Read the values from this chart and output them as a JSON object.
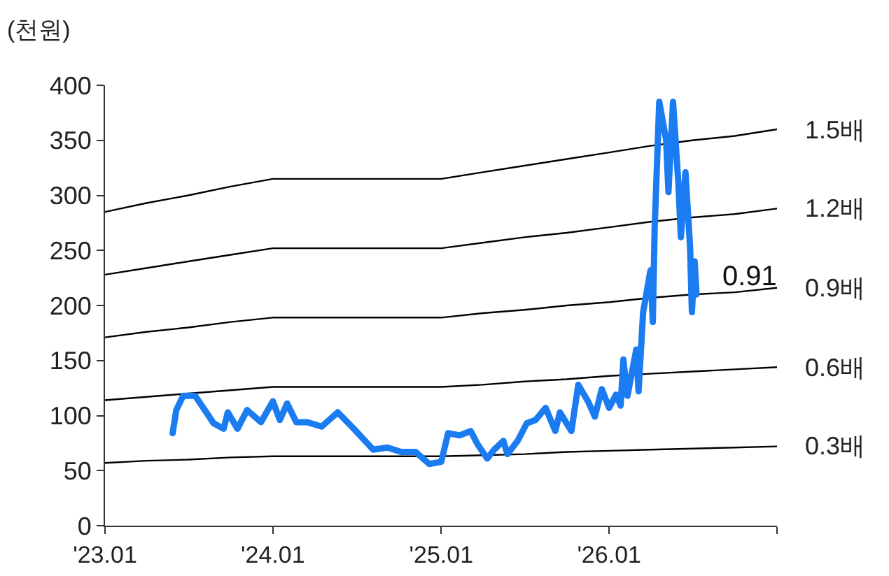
{
  "chart_data": {
    "type": "line",
    "ylabel": "(천원)",
    "xlim": [
      "2023-01-01",
      "2027-01-01"
    ],
    "xticks": [
      {
        "value": "2023-01-01",
        "label": "'23.01"
      },
      {
        "value": "2024-01-01",
        "label": "'24.01"
      },
      {
        "value": "2025-01-01",
        "label": "'25.01"
      },
      {
        "value": "2026-01-01",
        "label": "'26.01"
      },
      {
        "value": "2027-01-01",
        "label": null
      }
    ],
    "ylim": [
      0,
      400
    ],
    "yticks": [
      0,
      50,
      100,
      150,
      200,
      250,
      300,
      350,
      400
    ],
    "grid": false,
    "legend": false,
    "marker": "none",
    "line_style": "solid",
    "annotations": [
      {
        "text": "0.91",
        "x": "2026-07-10",
        "y": 210
      }
    ],
    "series": [
      {
        "name": "1.5배",
        "color": "#000000",
        "x": [
          "2023-01-01",
          "2023-04-01",
          "2023-07-01",
          "2023-10-01",
          "2024-01-01",
          "2024-07-01",
          "2025-01-01",
          "2025-04-01",
          "2025-07-01",
          "2025-10-01",
          "2026-01-01",
          "2026-04-01",
          "2026-07-01",
          "2026-10-01",
          "2027-01-01"
        ],
        "values": [
          285,
          293,
          300,
          308,
          315,
          315,
          315,
          321,
          327,
          333,
          339,
          345,
          350,
          354,
          360
        ]
      },
      {
        "name": "1.2배",
        "color": "#000000",
        "x": [
          "2023-01-01",
          "2023-04-01",
          "2023-07-01",
          "2023-10-01",
          "2024-01-01",
          "2024-07-01",
          "2025-01-01",
          "2025-04-01",
          "2025-07-01",
          "2025-10-01",
          "2026-01-01",
          "2026-04-01",
          "2026-07-01",
          "2026-10-01",
          "2027-01-01"
        ],
        "values": [
          228,
          234,
          240,
          246,
          252,
          252,
          252,
          257,
          262,
          266,
          271,
          276,
          280,
          283,
          288
        ]
      },
      {
        "name": "0.9배",
        "color": "#000000",
        "x": [
          "2023-01-01",
          "2023-04-01",
          "2023-07-01",
          "2023-10-01",
          "2024-01-01",
          "2024-07-01",
          "2025-01-01",
          "2025-04-01",
          "2025-07-01",
          "2025-10-01",
          "2026-01-01",
          "2026-04-01",
          "2026-07-01",
          "2026-10-01",
          "2027-01-01"
        ],
        "values": [
          171,
          176,
          180,
          185,
          189,
          189,
          189,
          193,
          196,
          200,
          203,
          207,
          210,
          212,
          216
        ]
      },
      {
        "name": "0.6배",
        "color": "#000000",
        "x": [
          "2023-01-01",
          "2023-04-01",
          "2023-07-01",
          "2023-10-01",
          "2024-01-01",
          "2024-07-01",
          "2025-01-01",
          "2025-04-01",
          "2025-07-01",
          "2025-10-01",
          "2026-01-01",
          "2026-04-01",
          "2026-07-01",
          "2026-10-01",
          "2027-01-01"
        ],
        "values": [
          114,
          117,
          120,
          123,
          126,
          126,
          126,
          128,
          131,
          133,
          136,
          138,
          140,
          142,
          144
        ]
      },
      {
        "name": "0.3배",
        "color": "#000000",
        "x": [
          "2023-01-01",
          "2023-04-01",
          "2023-07-01",
          "2023-10-01",
          "2024-01-01",
          "2024-07-01",
          "2025-01-01",
          "2025-04-01",
          "2025-07-01",
          "2025-10-01",
          "2026-01-01",
          "2026-04-01",
          "2026-07-01",
          "2026-10-01",
          "2027-01-01"
        ],
        "values": [
          57,
          59,
          60,
          62,
          63,
          63,
          63,
          64,
          65,
          67,
          68,
          69,
          70,
          71,
          72
        ]
      },
      {
        "color": "#1a7cf0",
        "x": [
          "2023-05-28",
          "2023-06-05",
          "2023-06-20",
          "2023-07-16",
          "2023-08-06",
          "2023-08-25",
          "2023-09-16",
          "2023-09-25",
          "2023-10-16",
          "2023-11-06",
          "2023-12-06",
          "2024-01-01",
          "2024-01-16",
          "2024-02-01",
          "2024-02-21",
          "2024-03-16",
          "2024-04-16",
          "2024-05-21",
          "2024-06-25",
          "2024-08-06",
          "2024-09-06",
          "2024-10-06",
          "2024-11-06",
          "2024-12-06",
          "2025-01-01",
          "2025-01-16",
          "2025-02-10",
          "2025-03-06",
          "2025-03-21",
          "2025-04-11",
          "2025-04-26",
          "2025-05-16",
          "2025-05-25",
          "2025-06-16",
          "2025-07-06",
          "2025-07-25",
          "2025-08-16",
          "2025-09-06",
          "2025-09-16",
          "2025-10-11",
          "2025-10-26",
          "2025-11-16",
          "2025-12-01",
          "2025-12-16",
          "2026-01-01",
          "2026-01-16",
          "2026-01-26",
          "2026-02-01",
          "2026-02-05",
          "2026-02-10",
          "2026-03-01",
          "2026-03-06",
          "2026-03-16",
          "2026-04-01",
          "2026-04-06",
          "2026-04-10",
          "2026-04-20",
          "2026-05-05",
          "2026-05-10",
          "2026-05-20",
          "2026-06-01",
          "2026-06-06",
          "2026-06-16",
          "2026-06-26",
          "2026-06-30",
          "2026-07-06",
          "2026-07-10"
        ],
        "values": [
          84,
          105,
          118,
          118,
          105,
          93,
          88,
          103,
          88,
          105,
          94,
          113,
          96,
          111,
          94,
          94,
          90,
          103,
          88,
          69,
          71,
          67,
          67,
          56,
          58,
          84,
          82,
          86,
          74,
          61,
          69,
          77,
          65,
          77,
          93,
          96,
          107,
          86,
          103,
          86,
          128,
          113,
          99,
          124,
          107,
          119,
          109,
          151,
          135,
          118,
          160,
          122,
          194,
          232,
          185,
          270,
          385,
          350,
          303,
          385,
          308,
          262,
          321,
          253,
          194,
          240,
          210
        ]
      }
    ]
  }
}
